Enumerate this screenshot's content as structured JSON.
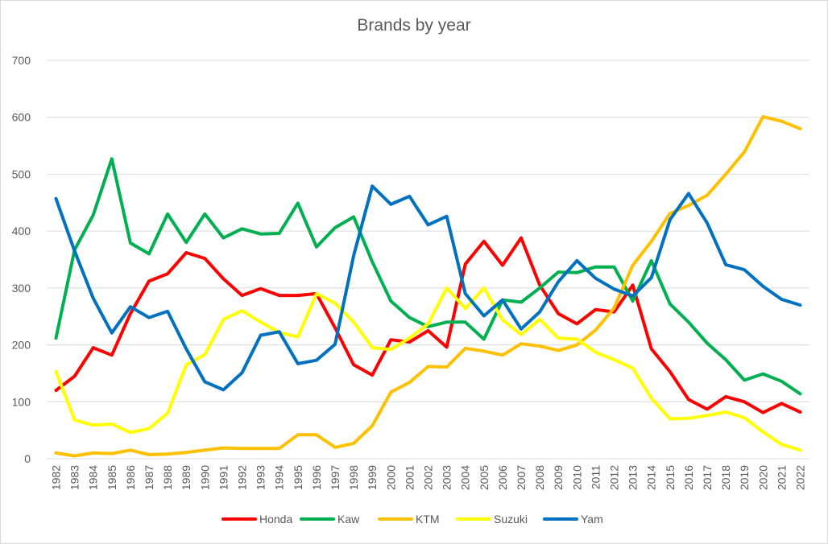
{
  "chart_data": {
    "type": "line",
    "title": "Brands by year",
    "xlabel": "",
    "ylabel": "",
    "ylim": [
      0,
      700
    ],
    "yticks": [
      "0",
      "100",
      "200",
      "300",
      "400",
      "500",
      "600",
      "700"
    ],
    "grid": true,
    "legend_position": "bottom",
    "categories": [
      "1982",
      "1983",
      "1984",
      "1985",
      "1986",
      "1987",
      "1988",
      "1989",
      "1990",
      "1991",
      "1992",
      "1993",
      "1994",
      "1995",
      "1996",
      "1997",
      "1998",
      "1999",
      "2000",
      "2001",
      "2002",
      "2003",
      "2004",
      "2005",
      "2006",
      "2007",
      "2008",
      "2009",
      "2010",
      "2011",
      "2012",
      "2013",
      "2014",
      "2015",
      "2016",
      "2017",
      "2018",
      "2019",
      "2020",
      "2021",
      "2022"
    ],
    "series": [
      {
        "name": "Honda",
        "color": "#ff0000",
        "values": [
          120,
          145,
          195,
          182,
          255,
          312,
          325,
          362,
          352,
          316,
          287,
          299,
          287,
          287,
          290,
          230,
          165,
          147,
          209,
          205,
          225,
          196,
          342,
          382,
          340,
          388,
          305,
          255,
          237,
          262,
          258,
          305,
          193,
          153,
          104,
          87,
          109,
          100,
          81,
          97,
          82
        ]
      },
      {
        "name": "Kaw",
        "color": "#00b050",
        "values": [
          212,
          367,
          428,
          527,
          379,
          360,
          430,
          380,
          430,
          388,
          404,
          395,
          396,
          449,
          372,
          406,
          425,
          346,
          277,
          248,
          232,
          240,
          240,
          210,
          279,
          275,
          300,
          328,
          327,
          337,
          337,
          277,
          348,
          272,
          240,
          203,
          174,
          138,
          149,
          136,
          114
        ]
      },
      {
        "name": "KTM",
        "color": "#ffc000",
        "values": [
          10,
          5,
          10,
          9,
          15,
          7,
          8,
          11,
          15,
          19,
          18,
          18,
          18,
          42,
          42,
          20,
          27,
          58,
          117,
          134,
          162,
          161,
          194,
          189,
          182,
          202,
          198,
          190,
          200,
          226,
          265,
          340,
          382,
          431,
          445,
          463,
          500,
          539,
          601,
          593,
          580
        ]
      },
      {
        "name": "Suzuki",
        "color": "#ffff00",
        "values": [
          153,
          68,
          59,
          61,
          46,
          53,
          80,
          165,
          183,
          245,
          260,
          240,
          222,
          214,
          290,
          273,
          240,
          195,
          192,
          212,
          237,
          300,
          264,
          300,
          244,
          218,
          245,
          212,
          210,
          187,
          174,
          159,
          106,
          70,
          71,
          76,
          82,
          72,
          47,
          25,
          15
        ]
      },
      {
        "name": "Yam",
        "color": "#0070c0",
        "values": [
          457,
          365,
          282,
          221,
          267,
          248,
          259,
          193,
          135,
          121,
          151,
          217,
          223,
          167,
          173,
          201,
          357,
          479,
          447,
          461,
          411,
          426,
          290,
          251,
          279,
          228,
          258,
          311,
          348,
          317,
          298,
          286,
          318,
          420,
          466,
          414,
          341,
          332,
          303,
          280,
          270
        ]
      }
    ]
  }
}
